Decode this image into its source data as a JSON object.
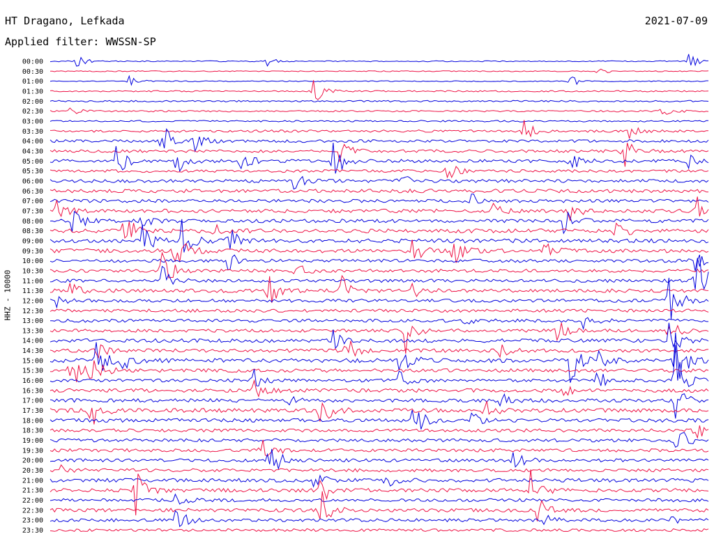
{
  "header": {
    "station": "HT Dragano, Lefkada",
    "date": "2021-07-09",
    "filter": "Applied filter: WWSSN-SP"
  },
  "chart_data": {
    "type": "line",
    "title": "HT Dragano, Lefkada",
    "ylabel": "HHZ - 10000",
    "rows": [
      "00:00",
      "00:30",
      "01:00",
      "01:30",
      "02:00",
      "02:30",
      "03:00",
      "03:30",
      "04:00",
      "04:30",
      "05:00",
      "05:30",
      "06:00",
      "06:30",
      "07:00",
      "07:30",
      "08:00",
      "08:30",
      "09:00",
      "09:30",
      "10:00",
      "10:30",
      "11:00",
      "11:30",
      "12:00",
      "12:30",
      "13:00",
      "13:30",
      "14:00",
      "14:30",
      "15:00",
      "15:30",
      "16:00",
      "16:30",
      "17:00",
      "17:30",
      "18:00",
      "18:30",
      "19:00",
      "19:30",
      "20:00",
      "20:30",
      "21:00",
      "21:30",
      "22:00",
      "22:30",
      "23:00",
      "23:30"
    ],
    "colors": {
      "even_rows": "#0000dd",
      "odd_rows": "#ee1144"
    },
    "noise_level": [
      0.05,
      0.05,
      0.05,
      0.07,
      0.08,
      0.08,
      0.08,
      0.12,
      0.14,
      0.14,
      0.16,
      0.14,
      0.16,
      0.18,
      0.16,
      0.18,
      0.18,
      0.2,
      0.2,
      0.2,
      0.16,
      0.16,
      0.16,
      0.18,
      0.16,
      0.16,
      0.16,
      0.16,
      0.18,
      0.18,
      0.2,
      0.18,
      0.16,
      0.18,
      0.18,
      0.2,
      0.18,
      0.16,
      0.16,
      0.16,
      0.16,
      0.16,
      0.18,
      0.18,
      0.16,
      0.18,
      0.16,
      0.14
    ],
    "events": [
      {
        "row": 0,
        "t": 0.04,
        "amp": 0.7
      },
      {
        "row": 0,
        "t": 0.33,
        "amp": 0.6
      },
      {
        "row": 0,
        "t": 0.97,
        "amp": 0.9
      },
      {
        "row": 1,
        "t": 0.83,
        "amp": 0.6
      },
      {
        "row": 2,
        "t": 0.12,
        "amp": 0.6
      },
      {
        "row": 2,
        "t": 0.79,
        "amp": 0.6
      },
      {
        "row": 3,
        "t": 0.4,
        "amp": 1.5
      },
      {
        "row": 5,
        "t": 0.03,
        "amp": 0.5
      },
      {
        "row": 5,
        "t": 0.93,
        "amp": 0.6
      },
      {
        "row": 7,
        "t": 0.72,
        "amp": 1.1
      },
      {
        "row": 7,
        "t": 0.88,
        "amp": 0.7
      },
      {
        "row": 8,
        "t": 0.17,
        "amp": 2.0
      },
      {
        "row": 8,
        "t": 0.22,
        "amp": 1.0
      },
      {
        "row": 9,
        "t": 0.44,
        "amp": 1.2
      },
      {
        "row": 9,
        "t": 0.87,
        "amp": 2.0
      },
      {
        "row": 10,
        "t": 0.1,
        "amp": 2.2
      },
      {
        "row": 10,
        "t": 0.19,
        "amp": 1.8
      },
      {
        "row": 10,
        "t": 0.29,
        "amp": 1.2
      },
      {
        "row": 10,
        "t": 0.43,
        "amp": 2.2
      },
      {
        "row": 10,
        "t": 0.79,
        "amp": 1.0
      },
      {
        "row": 10,
        "t": 0.97,
        "amp": 0.6
      },
      {
        "row": 11,
        "t": 0.6,
        "amp": 1.3
      },
      {
        "row": 12,
        "t": 0.37,
        "amp": 0.9
      },
      {
        "row": 12,
        "t": 0.53,
        "amp": 1.0
      },
      {
        "row": 14,
        "t": 0.64,
        "amp": 0.8
      },
      {
        "row": 15,
        "t": 0.01,
        "amp": 1.2
      },
      {
        "row": 15,
        "t": 0.67,
        "amp": 1.0
      },
      {
        "row": 15,
        "t": 0.79,
        "amp": 1.0
      },
      {
        "row": 15,
        "t": 0.98,
        "amp": 1.8
      },
      {
        "row": 16,
        "t": 0.03,
        "amp": 2.2
      },
      {
        "row": 16,
        "t": 0.14,
        "amp": 0.8
      },
      {
        "row": 16,
        "t": 0.78,
        "amp": 1.2
      },
      {
        "row": 17,
        "t": 0.11,
        "amp": 2.4
      },
      {
        "row": 17,
        "t": 0.25,
        "amp": 2.2
      },
      {
        "row": 17,
        "t": 0.86,
        "amp": 1.5
      },
      {
        "row": 18,
        "t": 0.14,
        "amp": 1.6
      },
      {
        "row": 18,
        "t": 0.2,
        "amp": 2.2
      },
      {
        "row": 18,
        "t": 0.27,
        "amp": 1.5
      },
      {
        "row": 19,
        "t": 0.19,
        "amp": 2.5
      },
      {
        "row": 19,
        "t": 0.55,
        "amp": 1.5
      },
      {
        "row": 19,
        "t": 0.61,
        "amp": 2.5
      },
      {
        "row": 19,
        "t": 0.75,
        "amp": 1.0
      },
      {
        "row": 20,
        "t": 0.27,
        "amp": 1.0
      },
      {
        "row": 20,
        "t": 0.97,
        "amp": 2.0
      },
      {
        "row": 21,
        "t": 0.17,
        "amp": 2.4
      },
      {
        "row": 21,
        "t": 0.37,
        "amp": 1.0
      },
      {
        "row": 22,
        "t": 0.17,
        "amp": 1.6
      },
      {
        "row": 22,
        "t": 0.98,
        "amp": 4.5
      },
      {
        "row": 23,
        "t": 0.03,
        "amp": 0.8
      },
      {
        "row": 23,
        "t": 0.33,
        "amp": 2.0
      },
      {
        "row": 23,
        "t": 0.44,
        "amp": 1.8
      },
      {
        "row": 23,
        "t": 0.55,
        "amp": 0.8
      },
      {
        "row": 24,
        "t": 0.01,
        "amp": 0.6
      },
      {
        "row": 24,
        "t": 0.94,
        "amp": 3.0
      },
      {
        "row": 26,
        "t": 0.62,
        "amp": 0.9
      },
      {
        "row": 26,
        "t": 0.81,
        "amp": 1.0
      },
      {
        "row": 27,
        "t": 0.54,
        "amp": 2.2
      },
      {
        "row": 27,
        "t": 0.77,
        "amp": 1.2
      },
      {
        "row": 27,
        "t": 0.94,
        "amp": 1.5
      },
      {
        "row": 28,
        "t": 0.43,
        "amp": 1.0
      },
      {
        "row": 28,
        "t": 0.94,
        "amp": 2.6
      },
      {
        "row": 29,
        "t": 0.07,
        "amp": 1.2
      },
      {
        "row": 29,
        "t": 0.45,
        "amp": 1.5
      },
      {
        "row": 29,
        "t": 0.68,
        "amp": 0.8
      },
      {
        "row": 30,
        "t": 0.07,
        "amp": 2.2
      },
      {
        "row": 30,
        "t": 0.11,
        "amp": 1.0
      },
      {
        "row": 30,
        "t": 0.53,
        "amp": 2.4
      },
      {
        "row": 30,
        "t": 0.79,
        "amp": 2.8
      },
      {
        "row": 30,
        "t": 0.83,
        "amp": 1.2
      },
      {
        "row": 30,
        "t": 0.95,
        "amp": 3.5
      },
      {
        "row": 31,
        "t": 0.03,
        "amp": 2.4
      },
      {
        "row": 31,
        "t": 0.06,
        "amp": 2.4
      },
      {
        "row": 32,
        "t": 0.31,
        "amp": 1.0
      },
      {
        "row": 32,
        "t": 0.53,
        "amp": 1.0
      },
      {
        "row": 32,
        "t": 0.83,
        "amp": 1.2
      },
      {
        "row": 32,
        "t": 0.95,
        "amp": 3.5
      },
      {
        "row": 33,
        "t": 0.31,
        "amp": 0.9
      },
      {
        "row": 33,
        "t": 0.78,
        "amp": 0.9
      },
      {
        "row": 34,
        "t": 0.36,
        "amp": 0.9
      },
      {
        "row": 34,
        "t": 0.68,
        "amp": 1.2
      },
      {
        "row": 34,
        "t": 0.95,
        "amp": 2.0
      },
      {
        "row": 35,
        "t": 0.06,
        "amp": 2.6
      },
      {
        "row": 35,
        "t": 0.41,
        "amp": 2.6
      },
      {
        "row": 35,
        "t": 0.66,
        "amp": 1.0
      },
      {
        "row": 36,
        "t": 0.55,
        "amp": 2.2
      },
      {
        "row": 36,
        "t": 0.64,
        "amp": 0.8
      },
      {
        "row": 37,
        "t": 0.98,
        "amp": 1.0
      },
      {
        "row": 38,
        "t": 0.95,
        "amp": 2.5
      },
      {
        "row": 39,
        "t": 0.32,
        "amp": 2.0
      },
      {
        "row": 40,
        "t": 0.33,
        "amp": 2.8
      },
      {
        "row": 40,
        "t": 0.7,
        "amp": 1.5
      },
      {
        "row": 41,
        "t": 0.01,
        "amp": 0.8
      },
      {
        "row": 42,
        "t": 0.4,
        "amp": 1.0
      },
      {
        "row": 42,
        "t": 0.51,
        "amp": 0.7
      },
      {
        "row": 43,
        "t": 0.13,
        "amp": 2.6
      },
      {
        "row": 43,
        "t": 0.41,
        "amp": 1.8
      },
      {
        "row": 43,
        "t": 0.73,
        "amp": 2.8
      },
      {
        "row": 44,
        "t": 0.19,
        "amp": 0.8
      },
      {
        "row": 45,
        "t": 0.41,
        "amp": 2.4
      },
      {
        "row": 45,
        "t": 0.74,
        "amp": 1.5
      },
      {
        "row": 46,
        "t": 0.19,
        "amp": 1.5
      },
      {
        "row": 46,
        "t": 0.75,
        "amp": 0.7
      },
      {
        "row": 46,
        "t": 0.94,
        "amp": 0.6
      }
    ]
  }
}
